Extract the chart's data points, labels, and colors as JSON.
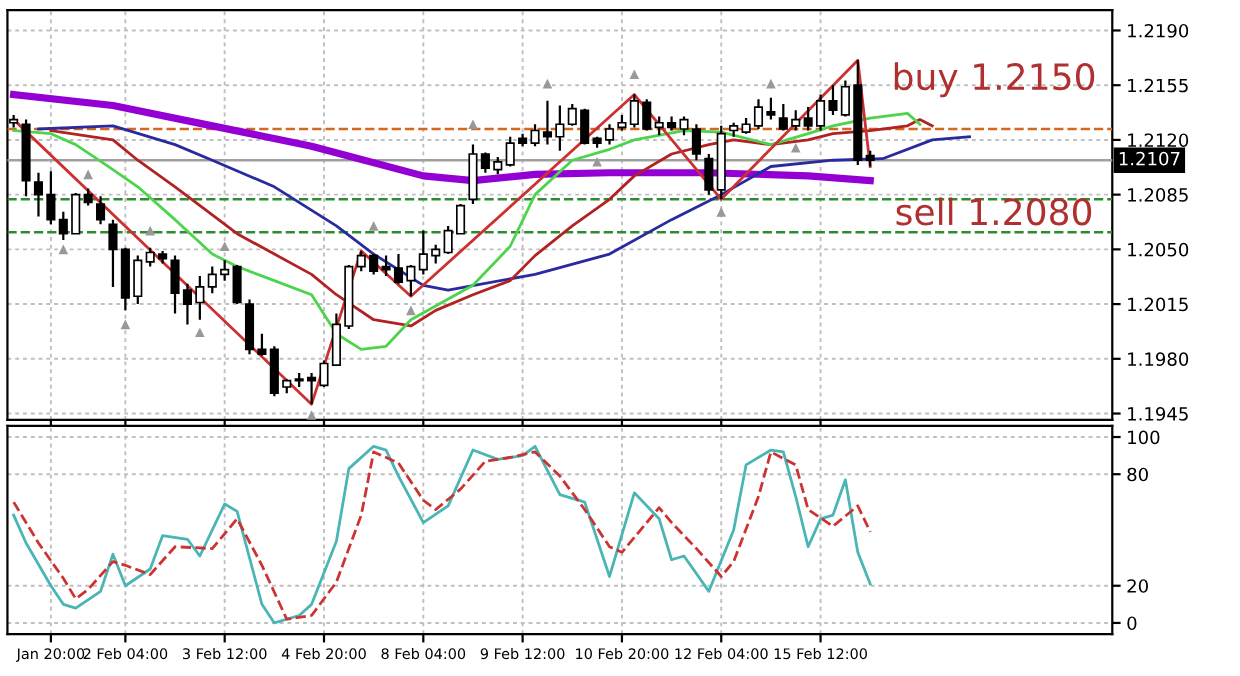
{
  "chart_data": [
    {
      "type": "candlestick",
      "categories": [
        null,
        null,
        null,
        null,
        null,
        null,
        null,
        null,
        null,
        null,
        null,
        null,
        null,
        null,
        null,
        null,
        null,
        null,
        null,
        null,
        null,
        null,
        null,
        null,
        null,
        null,
        null,
        null,
        null,
        null,
        null,
        null,
        null,
        null,
        null,
        null,
        null,
        null,
        null,
        null,
        null,
        null,
        null,
        null,
        null,
        null,
        null,
        null,
        null,
        null,
        null,
        null,
        null,
        null,
        null,
        null,
        null,
        null,
        null,
        null,
        null,
        null,
        null,
        null,
        null,
        null,
        null,
        null,
        null,
        null,
        null,
        null,
        null,
        null,
        null,
        null,
        null,
        null,
        null,
        null,
        null,
        null,
        null,
        null,
        null,
        null,
        null,
        null,
        null
      ],
      "ohlc": [
        [
          1.2131,
          1.2136,
          1.2128,
          1.2133
        ],
        [
          1.213,
          1.2133,
          1.2084,
          1.2094
        ],
        [
          1.2093,
          1.2099,
          1.2071,
          1.2085
        ],
        [
          1.2085,
          1.21,
          1.2066,
          1.2069
        ],
        [
          1.2069,
          1.2074,
          1.2056,
          1.206
        ],
        [
          1.206,
          1.2086,
          1.206,
          1.2085
        ],
        [
          1.2085,
          1.2089,
          1.2078,
          1.208
        ],
        [
          1.2079,
          1.2084,
          1.2066,
          1.2069
        ],
        [
          1.2066,
          1.2069,
          1.2026,
          1.205
        ],
        [
          1.205,
          1.2051,
          1.2011,
          1.2019
        ],
        [
          1.202,
          1.2046,
          1.2015,
          1.2043
        ],
        [
          1.2042,
          1.2051,
          1.2039,
          1.2048
        ],
        [
          1.2047,
          1.2049,
          1.2041,
          1.2044
        ],
        [
          1.2043,
          1.2046,
          1.2009,
          1.2022
        ],
        [
          1.2024,
          1.2028,
          1.2002,
          1.2015
        ],
        [
          1.2016,
          1.2033,
          1.2005,
          1.2026
        ],
        [
          1.2026,
          1.2039,
          1.2022,
          1.2034
        ],
        [
          1.2034,
          1.2043,
          1.203,
          1.2037
        ],
        [
          1.2039,
          1.204,
          1.2015,
          1.2016
        ],
        [
          1.2015,
          1.2018,
          1.1983,
          1.1986
        ],
        [
          1.1986,
          1.1996,
          1.1982,
          1.1983
        ],
        [
          1.1986,
          1.1988,
          1.1956,
          1.1958
        ],
        [
          1.1962,
          1.1967,
          1.1958,
          1.1966
        ],
        [
          1.1966,
          1.1971,
          1.1962,
          1.1967
        ],
        [
          1.1968,
          1.1971,
          1.1951,
          1.1966
        ],
        [
          1.1963,
          1.1979,
          1.1962,
          1.1977
        ],
        [
          1.1976,
          1.2009,
          1.1976,
          1.2002
        ],
        [
          1.2001,
          1.204,
          1.1999,
          1.2039
        ],
        [
          1.2039,
          1.2049,
          1.2036,
          1.2046
        ],
        [
          1.2046,
          1.2047,
          1.2034,
          1.2036
        ],
        [
          1.2039,
          1.2046,
          1.2033,
          1.2037
        ],
        [
          1.2038,
          1.2047,
          1.2028,
          1.2029
        ],
        [
          1.203,
          1.204,
          1.202,
          1.2039
        ],
        [
          1.2037,
          1.2062,
          1.2034,
          1.2047
        ],
        [
          1.2046,
          1.2053,
          1.2041,
          1.205
        ],
        [
          1.2048,
          1.2065,
          1.2047,
          1.2062
        ],
        [
          1.206,
          1.2079,
          1.206,
          1.2078
        ],
        [
          1.2082,
          1.2117,
          1.2079,
          1.2111
        ],
        [
          1.2111,
          1.2112,
          1.2099,
          1.2102
        ],
        [
          1.2101,
          1.2109,
          1.2098,
          1.2106
        ],
        [
          1.2104,
          1.2122,
          1.2103,
          1.2118
        ],
        [
          1.2121,
          1.2124,
          1.2116,
          1.2118
        ],
        [
          1.2118,
          1.213,
          1.2116,
          1.2126
        ],
        [
          1.2125,
          1.2145,
          1.2117,
          1.2122
        ],
        [
          1.2122,
          1.2142,
          1.2113,
          1.213
        ],
        [
          1.213,
          1.2143,
          1.2129,
          1.214
        ],
        [
          1.2139,
          1.214,
          1.2117,
          1.2118
        ],
        [
          1.2121,
          1.2122,
          1.2115,
          1.2118
        ],
        [
          1.212,
          1.213,
          1.2117,
          1.2127
        ],
        [
          1.2128,
          1.2136,
          1.2126,
          1.2131
        ],
        [
          1.213,
          1.2149,
          1.2128,
          1.2145
        ],
        [
          1.2144,
          1.2146,
          1.2126,
          1.2127
        ],
        [
          1.2128,
          1.2135,
          1.2123,
          1.2131
        ],
        [
          1.2131,
          1.2135,
          1.2126,
          1.2128
        ],
        [
          1.2127,
          1.2135,
          1.2123,
          1.2133
        ],
        [
          1.2127,
          1.213,
          1.2107,
          1.2111
        ],
        [
          1.2108,
          1.2111,
          1.2085,
          1.2088
        ],
        [
          1.2088,
          1.2129,
          1.2082,
          1.2124
        ],
        [
          1.2126,
          1.2131,
          1.2122,
          1.2129
        ],
        [
          1.2125,
          1.2134,
          1.2124,
          1.213
        ],
        [
          1.2129,
          1.2146,
          1.2127,
          1.2141
        ],
        [
          1.2138,
          1.2147,
          1.2133,
          1.2136
        ],
        [
          1.2134,
          1.2143,
          1.2126,
          1.2127
        ],
        [
          1.2129,
          1.2139,
          1.2126,
          1.2133
        ],
        [
          1.2134,
          1.2141,
          1.2126,
          1.2129
        ],
        [
          1.2129,
          1.2149,
          1.2126,
          1.2145
        ],
        [
          1.2145,
          1.2155,
          1.2136,
          1.2139
        ],
        [
          1.2136,
          1.2158,
          1.2135,
          1.2154
        ],
        [
          1.2155,
          1.2171,
          1.2104,
          1.2107
        ],
        [
          1.211,
          1.2113,
          1.2103,
          1.2107
        ],
        null,
        null,
        null,
        null,
        null,
        null,
        null,
        null,
        null,
        null,
        null,
        null,
        null,
        null,
        null,
        null,
        null,
        null,
        null
      ],
      "series": [
        {
          "type": "line",
          "color": "#9400d3",
          "values": [
            1.2149,
            null,
            null,
            null,
            null,
            null,
            null,
            null,
            1.2142,
            null,
            null,
            null,
            null,
            null,
            null,
            null,
            1.2129,
            null,
            null,
            null,
            null,
            null,
            null,
            null,
            1.2116,
            null,
            null,
            null,
            null,
            null,
            null,
            null,
            null,
            1.2097,
            null,
            null,
            null,
            1.2094,
            null,
            null,
            null,
            null,
            1.2098,
            null,
            null,
            null,
            null,
            null,
            1.2099,
            null,
            null,
            null,
            null,
            null,
            null,
            null,
            1.2099,
            null,
            null,
            null,
            null,
            null,
            null,
            null,
            1.2097,
            null,
            null,
            null,
            null,
            1.2094,
            null,
            null,
            null,
            null,
            null,
            null,
            null,
            null,
            null,
            null,
            null,
            null,
            null,
            null,
            null,
            null,
            null,
            null,
            null
          ]
        },
        {
          "type": "line",
          "color": "#2a2aa0",
          "values": [
            null,
            null,
            1.2127,
            null,
            null,
            null,
            null,
            null,
            1.2129,
            null,
            null,
            null,
            null,
            1.2117,
            null,
            null,
            1.2107,
            null,
            null,
            null,
            null,
            1.209,
            null,
            null,
            null,
            null,
            1.2065,
            null,
            null,
            1.2047,
            null,
            null,
            null,
            1.2027,
            null,
            1.2024,
            null,
            null,
            null,
            null,
            null,
            null,
            1.2034,
            null,
            null,
            null,
            null,
            null,
            1.2047,
            null,
            null,
            null,
            null,
            1.2069,
            null,
            null,
            null,
            1.2085,
            null,
            null,
            null,
            1.2103,
            null,
            null,
            null,
            null,
            1.2107,
            null,
            null,
            null,
            1.2108,
            null,
            null,
            null,
            1.212,
            null,
            null,
            1.2122,
            null,
            null,
            null,
            null,
            null,
            null,
            null,
            null,
            null,
            null,
            null
          ]
        },
        {
          "type": "line",
          "color": "#b22222",
          "values": [
            null,
            null,
            null,
            1.2126,
            null,
            null,
            null,
            null,
            1.212,
            null,
            1.2107,
            null,
            null,
            1.209,
            null,
            null,
            1.2072,
            null,
            1.206,
            null,
            null,
            1.2047,
            null,
            null,
            1.2034,
            null,
            1.2021,
            null,
            null,
            1.2005,
            null,
            null,
            1.2001,
            null,
            1.2011,
            null,
            null,
            1.2021,
            null,
            null,
            1.203,
            null,
            1.2046,
            null,
            null,
            1.2065,
            null,
            null,
            1.2082,
            null,
            1.2097,
            null,
            null,
            1.2111,
            null,
            null,
            1.2117,
            null,
            1.212,
            null,
            null,
            1.2117,
            null,
            null,
            1.212,
            null,
            1.2124,
            null,
            null,
            1.2126,
            null,
            null,
            1.2129,
            1.2133,
            1.2129,
            null,
            null,
            null,
            null,
            null,
            null,
            null,
            null,
            null,
            null,
            null,
            null,
            null,
            null
          ]
        },
        {
          "type": "line",
          "color": "#4cd44c",
          "values": [
            1.2126,
            null,
            null,
            1.2124,
            null,
            1.2117,
            null,
            null,
            1.2101,
            null,
            1.209,
            null,
            null,
            1.2069,
            null,
            null,
            1.2047,
            null,
            1.2039,
            null,
            null,
            1.203,
            null,
            null,
            1.2021,
            null,
            1.1996,
            null,
            1.1986,
            null,
            1.1988,
            null,
            1.2005,
            null,
            null,
            null,
            null,
            1.2027,
            null,
            null,
            1.2052,
            null,
            1.2085,
            null,
            null,
            1.2107,
            null,
            null,
            1.2114,
            null,
            1.212,
            null,
            null,
            null,
            1.2126,
            null,
            null,
            1.2125,
            null,
            null,
            null,
            1.2117,
            null,
            null,
            1.2124,
            null,
            1.2129,
            null,
            null,
            1.2134,
            null,
            null,
            1.2137,
            1.213,
            null,
            null,
            null,
            null,
            null,
            null,
            null,
            null,
            null,
            null,
            null,
            null,
            null,
            null,
            null
          ]
        },
        {
          "type": "line",
          "color": "#cc3030",
          "values": [
            1.2133,
            null,
            null,
            null,
            null,
            null,
            null,
            null,
            null,
            null,
            null,
            null,
            null,
            null,
            null,
            null,
            null,
            null,
            null,
            null,
            null,
            null,
            null,
            null,
            1.1951,
            null,
            null,
            null,
            1.2049,
            null,
            null,
            null,
            1.202,
            null,
            null,
            null,
            null,
            null,
            null,
            null,
            null,
            null,
            null,
            null,
            null,
            null,
            null,
            null,
            null,
            null,
            1.2149,
            null,
            null,
            null,
            null,
            null,
            null,
            1.2082,
            null,
            null,
            null,
            null,
            null,
            null,
            null,
            null,
            null,
            null,
            1.2171,
            1.2103,
            null,
            null,
            null,
            null,
            null,
            null,
            null,
            null,
            null,
            null,
            null,
            null,
            null,
            null,
            null,
            null,
            null,
            null,
            null
          ]
        },
        {
          "type": "scatter",
          "color": "#999999",
          "marker": "triangle",
          "values": [
            null,
            null,
            null,
            null,
            1.205,
            null,
            1.2098,
            null,
            null,
            1.2002,
            null,
            1.2062,
            null,
            null,
            null,
            1.1997,
            null,
            1.2052,
            null,
            null,
            null,
            null,
            null,
            null,
            1.1944,
            null,
            null,
            null,
            null,
            1.2065,
            null,
            null,
            1.2011,
            null,
            null,
            null,
            null,
            1.213,
            null,
            null,
            null,
            null,
            null,
            1.2156,
            null,
            null,
            null,
            1.2106,
            null,
            null,
            1.2162,
            null,
            null,
            null,
            null,
            null,
            null,
            1.2074,
            null,
            null,
            null,
            1.2156,
            null,
            1.2115,
            null,
            null,
            null,
            null,
            null,
            null,
            null,
            null,
            null,
            null,
            null,
            null,
            null,
            null,
            null,
            null,
            null,
            null,
            null,
            null,
            null,
            null,
            null,
            null,
            null
          ]
        }
      ],
      "ref_lines": [
        {
          "axis": "y",
          "value": 1.2127,
          "color": "#d2691e",
          "line_style": "dashed"
        },
        {
          "axis": "y",
          "value": 1.2107,
          "color": "#a0a0a0",
          "line_style": "solid",
          "label": "1.2107"
        },
        {
          "axis": "y",
          "value": 1.2082,
          "color": "#2e8b2e",
          "line_style": "dashed"
        },
        {
          "axis": "y",
          "value": 1.2061,
          "color": "#2e8b2e",
          "line_style": "dashed"
        }
      ],
      "annotations": [
        "buy 1.2150",
        "sell 1.2080"
      ],
      "ylim": [
        1.1941,
        1.2203
      ],
      "yticks": [
        {
          "value": 1.219,
          "label": "1.2190"
        },
        1.2155,
        {
          "value": 1.212,
          "label": "1.2120"
        },
        1.2085,
        {
          "value": 1.205,
          "label": "1.2050"
        },
        1.2015,
        {
          "value": 1.198,
          "label": "1.1980"
        },
        1.1945
      ],
      "grid": true,
      "tick_labels": "y"
    },
    {
      "type": "line",
      "categories": [
        null,
        null,
        null,
        "Jan 20:00",
        null,
        null,
        null,
        null,
        null,
        "2 Feb 04:00",
        null,
        null,
        null,
        null,
        null,
        null,
        null,
        "3 Feb 12:00",
        null,
        null,
        null,
        null,
        null,
        null,
        null,
        "4 Feb 20:00",
        null,
        null,
        null,
        null,
        null,
        null,
        null,
        "8 Feb 04:00",
        null,
        null,
        null,
        null,
        null,
        null,
        null,
        "9 Feb 12:00",
        null,
        null,
        null,
        null,
        null,
        null,
        null,
        "10 Feb 20:00",
        null,
        null,
        null,
        null,
        null,
        null,
        null,
        "12 Feb 04:00",
        null,
        null,
        null,
        null,
        null,
        null,
        null,
        "15 Feb 12:00",
        null,
        null,
        null,
        null,
        null,
        null,
        null,
        null,
        null,
        null,
        null,
        null,
        null,
        null,
        null,
        null,
        null,
        null,
        null,
        null,
        null,
        null,
        null
      ],
      "series": [
        {
          "color": "#4ab5b5",
          "line_style": "solid",
          "values": [
            58,
            43,
            null,
            20,
            10,
            8,
            null,
            17,
            37,
            20,
            null,
            29,
            47,
            null,
            45,
            36,
            null,
            64,
            60,
            null,
            10,
            0,
            null,
            4,
            10,
            null,
            44,
            83,
            null,
            95,
            93,
            79,
            null,
            54,
            null,
            63,
            null,
            93,
            null,
            88,
            null,
            90,
            95,
            null,
            69,
            null,
            65,
            null,
            25,
            null,
            70,
            null,
            56,
            34,
            36,
            null,
            17,
            null,
            50,
            85,
            null,
            93,
            92,
            68,
            41,
            56,
            58,
            77,
            38,
            21,
            null,
            null,
            null,
            null,
            null,
            null,
            null,
            null,
            null,
            null,
            null,
            null,
            null,
            null,
            null,
            null,
            null,
            null,
            null
          ]
        },
        {
          "color": "#cc3333",
          "line_style": "dashed",
          "values": [
            65,
            null,
            43,
            null,
            24,
            13,
            18,
            null,
            33,
            31,
            null,
            26,
            null,
            41,
            null,
            null,
            40,
            null,
            56,
            null,
            31,
            null,
            2,
            null,
            4,
            null,
            22,
            null,
            58,
            92,
            null,
            86,
            null,
            66,
            61,
            null,
            72,
            null,
            87,
            null,
            89,
            null,
            92,
            null,
            79,
            null,
            61,
            null,
            41,
            38,
            null,
            null,
            62,
            54,
            null,
            40,
            null,
            25,
            33,
            null,
            68,
            92,
            null,
            85,
            61,
            null,
            52,
            null,
            63,
            49,
            null,
            null,
            null,
            null,
            null,
            null,
            null,
            null,
            null,
            null,
            null,
            null,
            null,
            null,
            null,
            null,
            null,
            null,
            null
          ]
        }
      ],
      "ylim": [
        -6,
        106
      ],
      "yticks": [
        0,
        20,
        80,
        100
      ],
      "grid": true
    }
  ]
}
